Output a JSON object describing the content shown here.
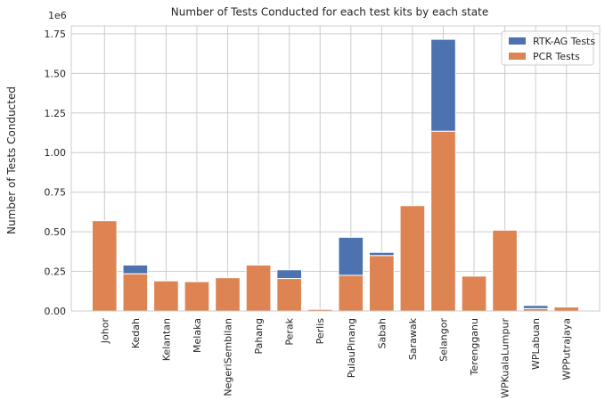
{
  "chart_data": {
    "type": "bar",
    "stacked": true,
    "title": "Number of Tests Conducted for each test kits by each state",
    "xlabel": "",
    "ylabel": "Number of Tests Conducted",
    "y_offset_label": "1e6",
    "ylim": [
      0,
      1.8
    ],
    "yticks": [
      "0.00",
      "0.25",
      "0.50",
      "0.75",
      "1.00",
      "1.25",
      "1.50",
      "1.75"
    ],
    "yticks_values": [
      0,
      0.25,
      0.5,
      0.75,
      1.0,
      1.25,
      1.5,
      1.75
    ],
    "grid": true,
    "legend_position": "top-right",
    "categories": [
      "Johor",
      "Kedah",
      "Kelantan",
      "Melaka",
      "NegeriSembilan",
      "Pahang",
      "Perak",
      "Perlis",
      "PulauPinang",
      "Sabah",
      "Sarawak",
      "Selangor",
      "Terengganu",
      "WPKualaLumpur",
      "WPLabuan",
      "WPPutrajaya"
    ],
    "series": [
      {
        "name": "PCR Tests",
        "color": "#dd8452",
        "values": [
          0.57,
          0.235,
          0.19,
          0.185,
          0.21,
          0.29,
          0.205,
          0.01,
          0.225,
          0.35,
          0.665,
          1.135,
          0.22,
          0.51,
          0.015,
          0.025
        ]
      },
      {
        "name": "RTK-AG Tests",
        "color": "#4c72b0",
        "values": [
          0.0,
          0.055,
          0.0,
          0.0,
          0.0,
          0.0,
          0.055,
          0.0,
          0.24,
          0.02,
          0.0,
          0.58,
          0.0,
          0.0,
          0.02,
          0.0
        ]
      }
    ],
    "legend_order": [
      "RTK-AG Tests",
      "PCR Tests"
    ]
  }
}
